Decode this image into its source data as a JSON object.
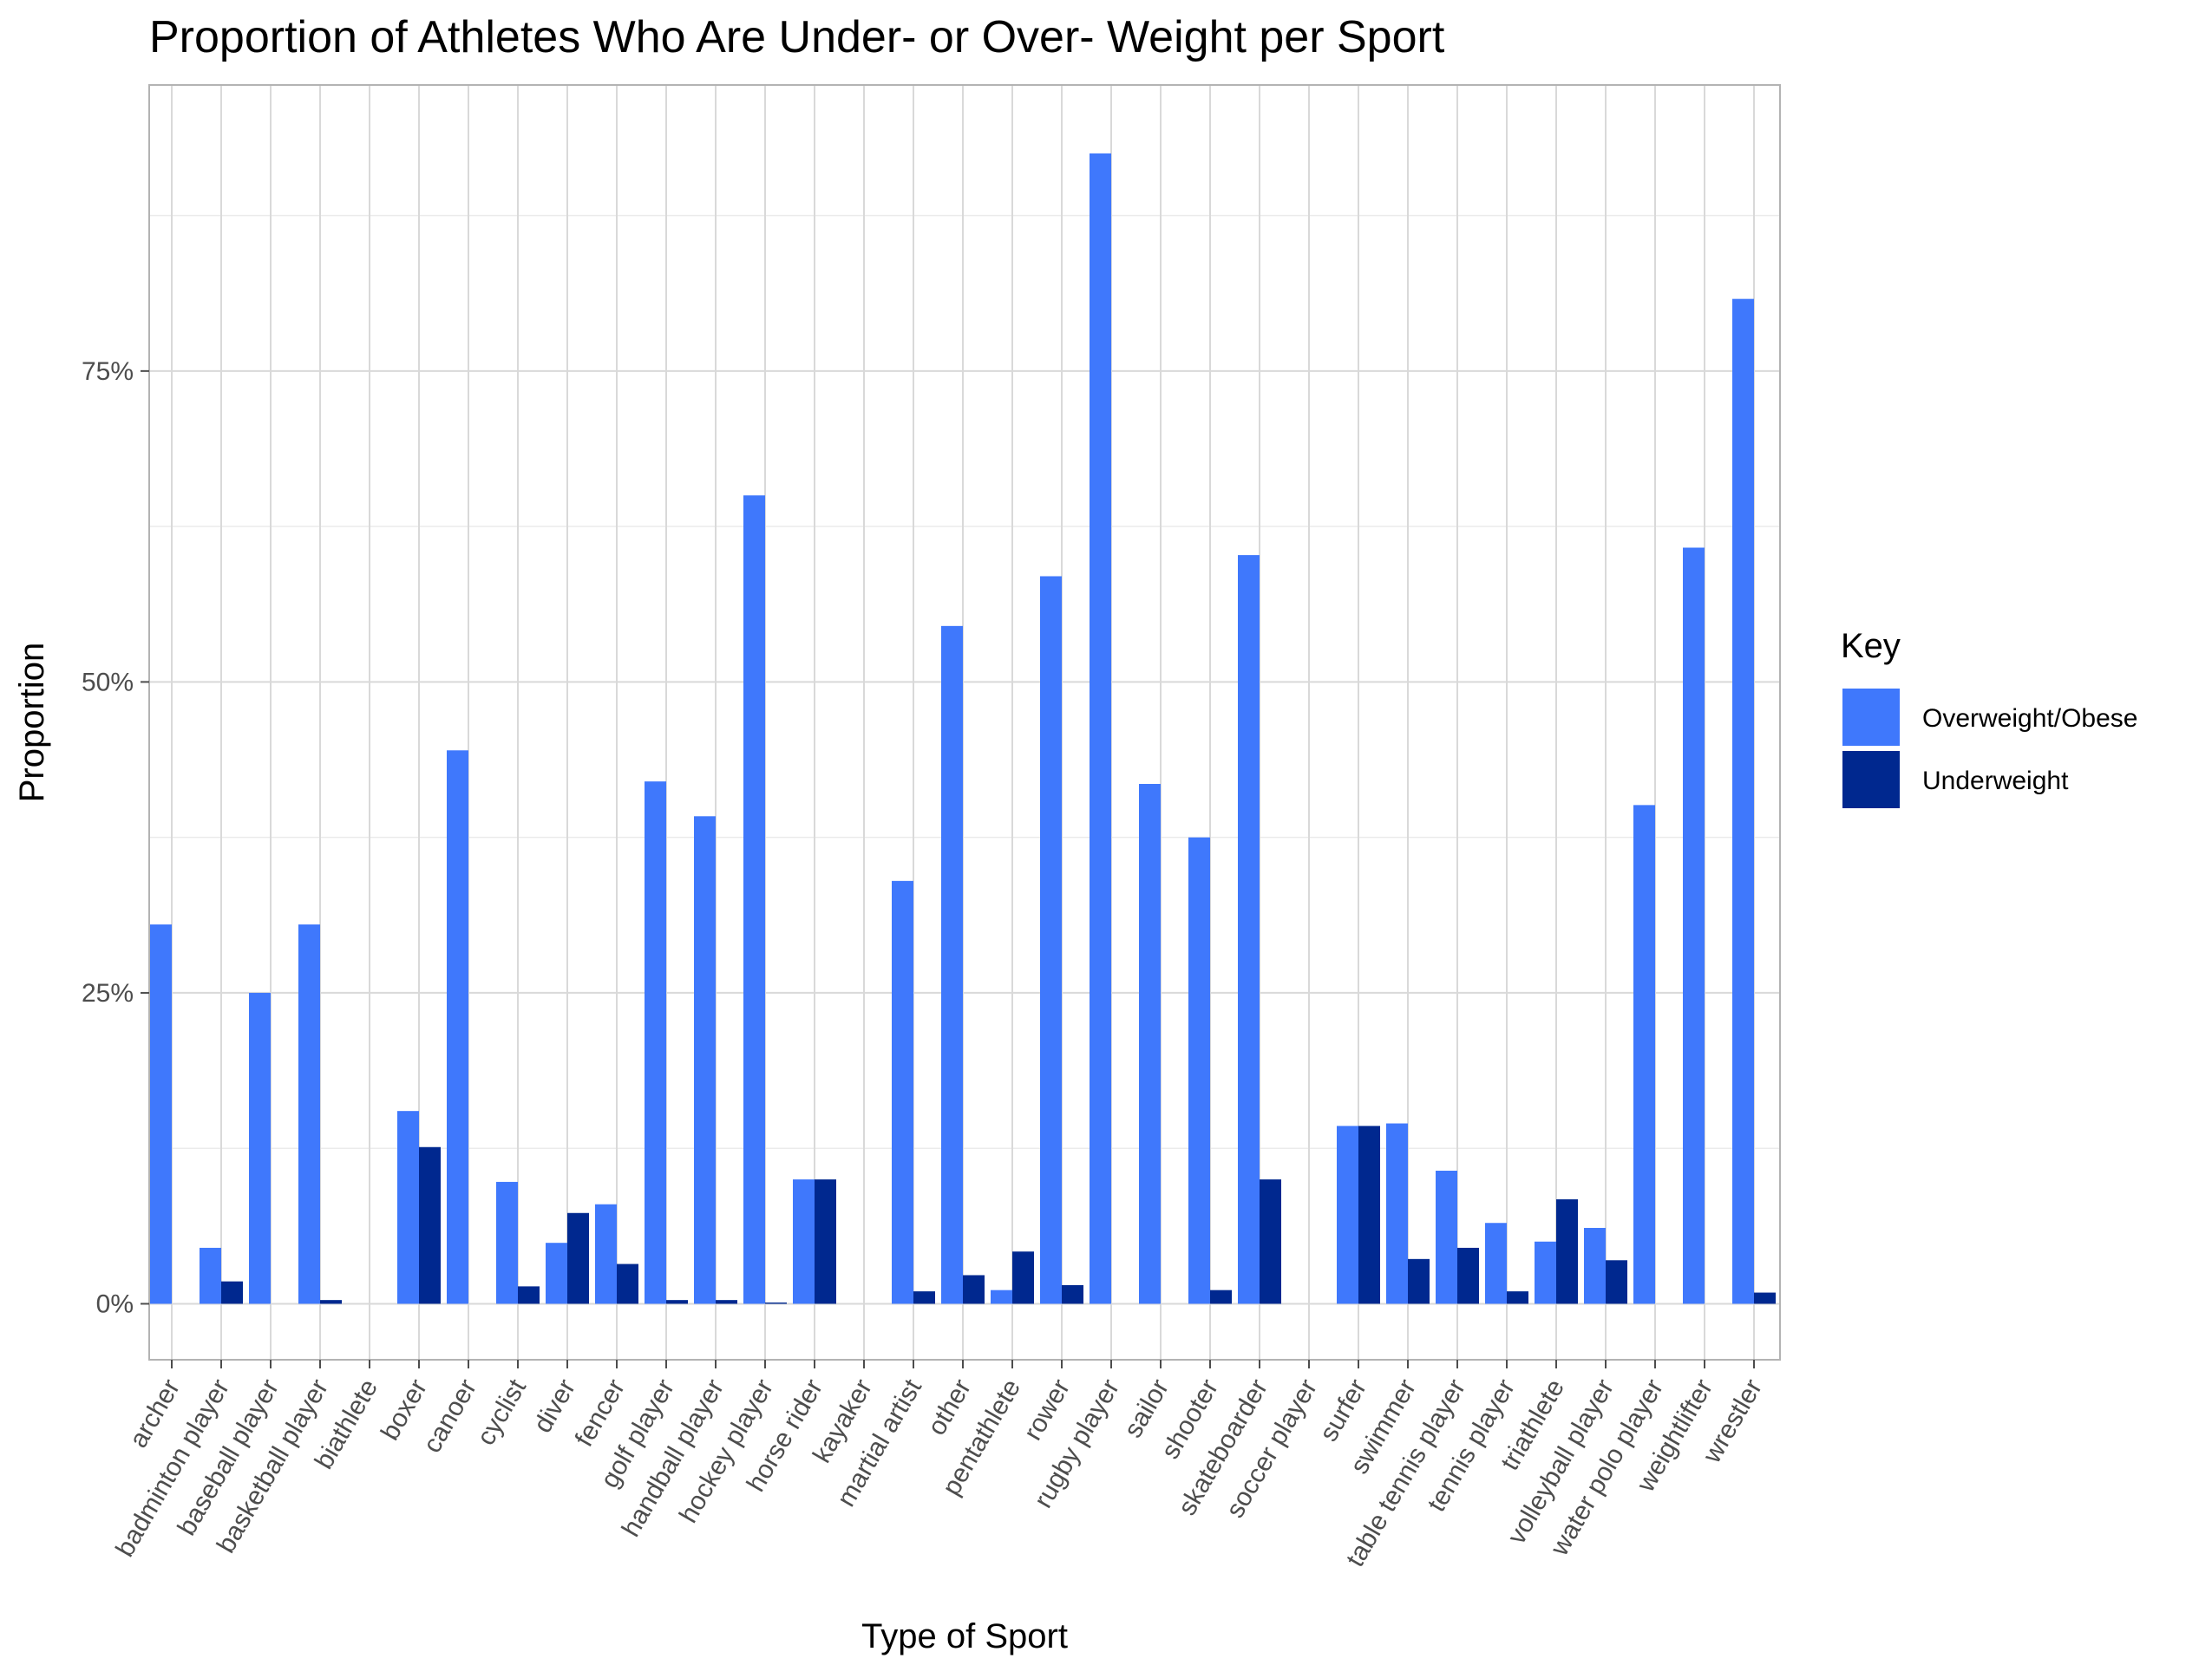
{
  "chart_data": {
    "type": "bar",
    "title": "Proportion of Athletes Who Are Under- or Over- Weight per Sport",
    "xlabel": "Type of Sport",
    "ylabel": "Proportion",
    "ylim": [
      -0.045,
      0.98
    ],
    "yticks": [
      0,
      0.25,
      0.5,
      0.75
    ],
    "ytick_labels": [
      "0%",
      "25%",
      "50%",
      "75%"
    ],
    "grid": true,
    "legend": {
      "title": "Key",
      "position": "right"
    },
    "categories": [
      "archer",
      "badminton player",
      "baseball player",
      "basketball player",
      "biathlete",
      "boxer",
      "canoer",
      "cyclist",
      "diver",
      "fencer",
      "golf player",
      "handball player",
      "hockey player",
      "horse rider",
      "kayaker",
      "martial artist",
      "other",
      "pentathlete",
      "rower",
      "rugby player",
      "sailor",
      "shooter",
      "skateboarder",
      "soccer player",
      "surfer",
      "swimmer",
      "table tennis player",
      "tennis player",
      "triathlete",
      "volleyball player",
      "water polo player",
      "weightlifter",
      "wrestler"
    ],
    "series": [
      {
        "name": "Overweight/Obese",
        "color": "#3F78FC",
        "values": [
          0.305,
          0.045,
          0.25,
          0.305,
          0,
          0.155,
          0.445,
          0.098,
          0.049,
          0.08,
          0.42,
          0.392,
          0.65,
          0.1,
          0,
          0.34,
          0.545,
          0.011,
          0.585,
          0.925,
          0.418,
          0.375,
          0.602,
          0,
          0.143,
          0.145,
          0.107,
          0.065,
          0.05,
          0.061,
          0.401,
          0.608,
          0.808
        ]
      },
      {
        "name": "Underweight",
        "color": "#00288F",
        "values": [
          0,
          0.018,
          0,
          0.003,
          0,
          0.126,
          0,
          0.014,
          0.073,
          0.032,
          0.003,
          0.003,
          0.001,
          0.1,
          0,
          0.01,
          0.023,
          0.042,
          0.015,
          0,
          0,
          0.011,
          0.1,
          0,
          0.143,
          0.036,
          0.045,
          0.01,
          0.084,
          0.035,
          0,
          0,
          0.009
        ]
      }
    ]
  }
}
